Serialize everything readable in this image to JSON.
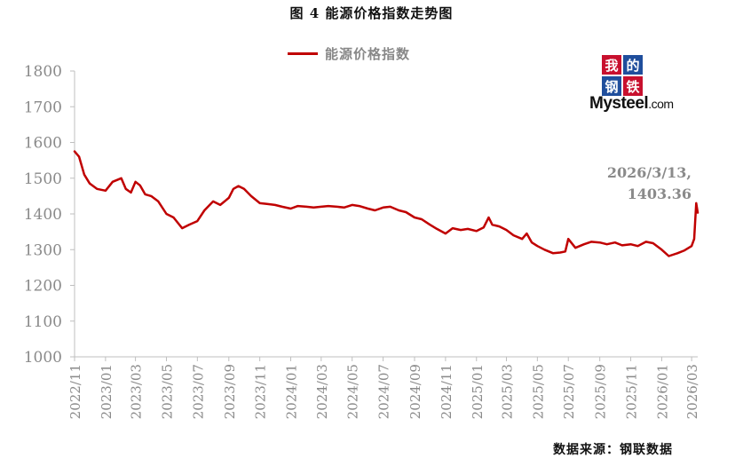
{
  "header": {
    "title": "图 4  能源价格指数走势图"
  },
  "legend": {
    "label": "能源价格指数"
  },
  "source": "数据来源：钢联数据",
  "logo": {
    "chars": [
      "我",
      "的",
      "钢",
      "铁"
    ],
    "wordmark_main": "Mysteel",
    "wordmark_suffix": ".com",
    "colors": [
      "#c8102e",
      "#1f4e9c",
      "#1f4e9c",
      "#c8102e"
    ]
  },
  "annotation": {
    "line1": "2026/3/13,",
    "line2": "1403.36"
  },
  "colors": {
    "series": "#c00000",
    "axis_text": "#8a8a8a",
    "axis_line": "#bfbfbf"
  },
  "chart_data": {
    "type": "line",
    "title": "图 4  能源价格指数走势图",
    "ylim": [
      1000,
      1800
    ],
    "yticks": [
      1000,
      1100,
      1200,
      1300,
      1400,
      1500,
      1600,
      1700,
      1800
    ],
    "xticks": [
      "2022/11",
      "2023/01",
      "2023/03",
      "2023/05",
      "2023/07",
      "2023/09",
      "2023/11",
      "2024/01",
      "2024/03",
      "2024/05",
      "2024/07",
      "2024/09",
      "2024/11",
      "2025/01",
      "2025/03",
      "2025/05",
      "2025/07",
      "2025/09",
      "2025/11",
      "2026/01",
      "2026/03"
    ],
    "grid": false,
    "legend": "top",
    "series": [
      {
        "name": "能源价格指数",
        "x": [
          "2022-11-01",
          "2022-11-10",
          "2022-11-20",
          "2022-12-01",
          "2022-12-15",
          "2023-01-01",
          "2023-01-15",
          "2023-02-01",
          "2023-02-10",
          "2023-02-20",
          "2023-03-01",
          "2023-03-10",
          "2023-03-20",
          "2023-04-01",
          "2023-04-15",
          "2023-05-01",
          "2023-05-15",
          "2023-06-01",
          "2023-06-15",
          "2023-07-01",
          "2023-07-15",
          "2023-08-01",
          "2023-08-15",
          "2023-09-01",
          "2023-09-10",
          "2023-09-20",
          "2023-10-01",
          "2023-10-15",
          "2023-11-01",
          "2023-11-15",
          "2023-12-01",
          "2023-12-15",
          "2024-01-01",
          "2024-01-15",
          "2024-02-01",
          "2024-02-15",
          "2024-03-01",
          "2024-03-15",
          "2024-04-01",
          "2024-04-15",
          "2024-05-01",
          "2024-05-15",
          "2024-06-01",
          "2024-06-15",
          "2024-07-01",
          "2024-07-15",
          "2024-08-01",
          "2024-08-15",
          "2024-09-01",
          "2024-09-15",
          "2024-10-01",
          "2024-10-15",
          "2024-11-01",
          "2024-11-15",
          "2024-12-01",
          "2024-12-15",
          "2025-01-01",
          "2025-01-15",
          "2025-01-25",
          "2025-02-01",
          "2025-02-15",
          "2025-03-01",
          "2025-03-15",
          "2025-04-01",
          "2025-04-10",
          "2025-04-20",
          "2025-05-01",
          "2025-05-15",
          "2025-06-01",
          "2025-06-15",
          "2025-06-25",
          "2025-07-01",
          "2025-07-15",
          "2025-08-01",
          "2025-08-15",
          "2025-09-01",
          "2025-09-15",
          "2025-10-01",
          "2025-10-15",
          "2025-11-01",
          "2025-11-15",
          "2025-12-01",
          "2025-12-15",
          "2026-01-01",
          "2026-01-15",
          "2026-02-01",
          "2026-02-15",
          "2026-03-01",
          "2026-03-06",
          "2026-03-10",
          "2026-03-13"
        ],
        "values": [
          1575,
          1560,
          1510,
          1485,
          1470,
          1465,
          1490,
          1500,
          1470,
          1460,
          1490,
          1480,
          1455,
          1450,
          1435,
          1400,
          1390,
          1360,
          1370,
          1380,
          1410,
          1435,
          1425,
          1445,
          1470,
          1478,
          1470,
          1450,
          1430,
          1428,
          1425,
          1420,
          1415,
          1422,
          1420,
          1418,
          1420,
          1422,
          1420,
          1418,
          1425,
          1422,
          1415,
          1410,
          1418,
          1420,
          1410,
          1405,
          1390,
          1385,
          1370,
          1358,
          1345,
          1360,
          1355,
          1358,
          1352,
          1362,
          1390,
          1370,
          1365,
          1355,
          1340,
          1330,
          1345,
          1320,
          1310,
          1300,
          1290,
          1292,
          1295,
          1330,
          1305,
          1315,
          1322,
          1320,
          1315,
          1320,
          1312,
          1315,
          1310,
          1322,
          1318,
          1300,
          1282,
          1290,
          1298,
          1310,
          1330,
          1430,
          1403.36
        ]
      }
    ]
  }
}
